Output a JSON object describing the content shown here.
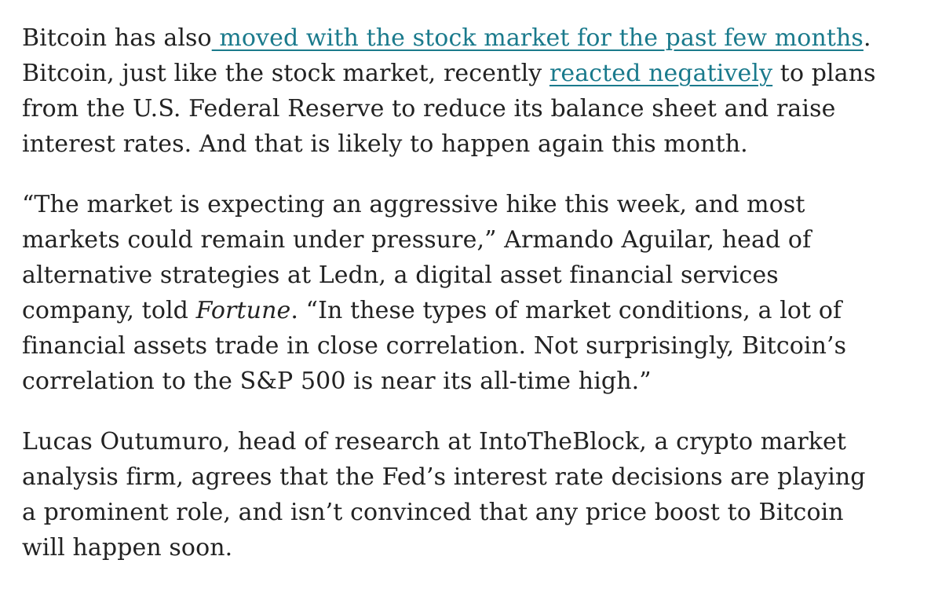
{
  "article": {
    "p1": {
      "l1_a": "Bitcoin has also",
      "l1_link": " moved with the stock market for the past few months",
      "l1_b": ".",
      "l2_a": "Bitcoin, just like the stock market, recently ",
      "l2_link": "reacted negatively",
      "l2_b": " to plans",
      "l3": "from the U.S. Federal Reserve to reduce its balance sheet and raise",
      "l4": "interest rates. And that is likely to happen again this month."
    },
    "p2": {
      "l1": "“The market is expecting an aggressive hike this week, and most",
      "l2": "markets could remain under pressure,” Armando Aguilar, head of",
      "l3": "alternative strategies at Ledn, a digital asset financial services",
      "l4_a": "company, told ",
      "l4_em": "Fortune",
      "l4_b": ". “In these types of market conditions, a lot of",
      "l5": "financial assets trade in close correlation. Not surprisingly, Bitcoin’s",
      "l6": "correlation to the S&P 500 is near its all-time high.”"
    },
    "p3": {
      "l1": "Lucas Outumuro, head of research at IntoTheBlock, a crypto market",
      "l2": "analysis firm, agrees that the Fed’s interest rate decisions are playing",
      "l3": "a prominent role, and isn’t convinced that any price boost to Bitcoin",
      "l4": "will happen soon."
    }
  },
  "colors": {
    "text": "#222222",
    "link": "#1a7a8c",
    "background": "#ffffff"
  }
}
